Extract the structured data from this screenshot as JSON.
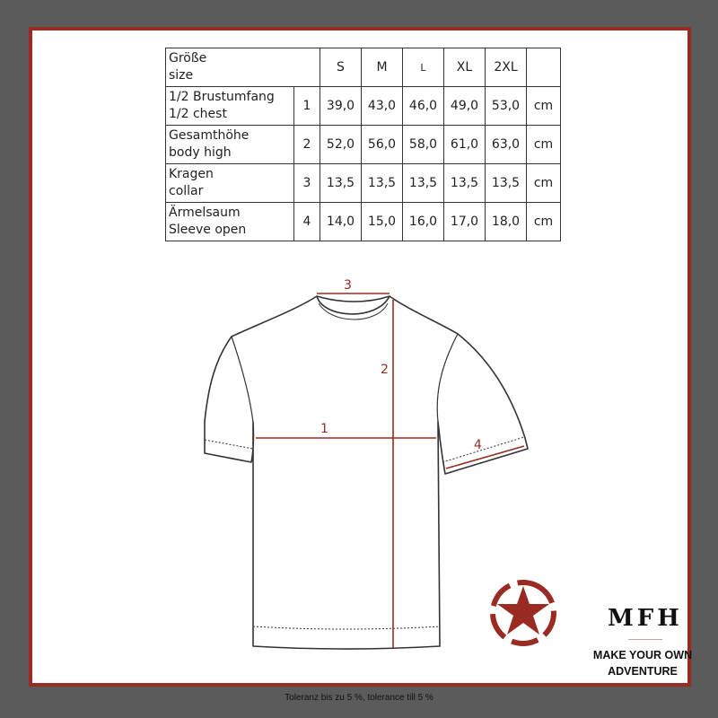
{
  "table": {
    "header": {
      "label_de": "Größe",
      "label_en": "size",
      "sizes": [
        "S",
        "M",
        "L",
        "XL",
        "2XL"
      ]
    },
    "rows": [
      {
        "label_de": "1/2 Brustumfang",
        "label_en": "1/2 chest",
        "num": "1",
        "values": [
          "39,0",
          "43,0",
          "46,0",
          "49,0",
          "53,0"
        ],
        "unit": "cm"
      },
      {
        "label_de": "Gesamthöhe",
        "label_en": "body high",
        "num": "2",
        "values": [
          "52,0",
          "56,0",
          "58,0",
          "61,0",
          "63,0"
        ],
        "unit": "cm"
      },
      {
        "label_de": "Kragen",
        "label_en": "collar",
        "num": "3",
        "values": [
          "13,5",
          "13,5",
          "13,5",
          "13,5",
          "13,5"
        ],
        "unit": "cm"
      },
      {
        "label_de": "Ärmelsaum",
        "label_en": "Sleeve open",
        "num": "4",
        "values": [
          "14,0",
          "15,0",
          "16,0",
          "17,0",
          "18,0"
        ],
        "unit": "cm"
      }
    ]
  },
  "diagram": {
    "labels": [
      "1",
      "2",
      "3",
      "4"
    ],
    "measure_color": "#9a2b22"
  },
  "logo": {
    "name": "MFH",
    "tagline_1": "MAKE YOUR OWN",
    "tagline_2": "ADVENTURE",
    "color": "#9a2b22"
  },
  "footer": "Toleranz bis zu 5 %, tolerance till 5 %"
}
